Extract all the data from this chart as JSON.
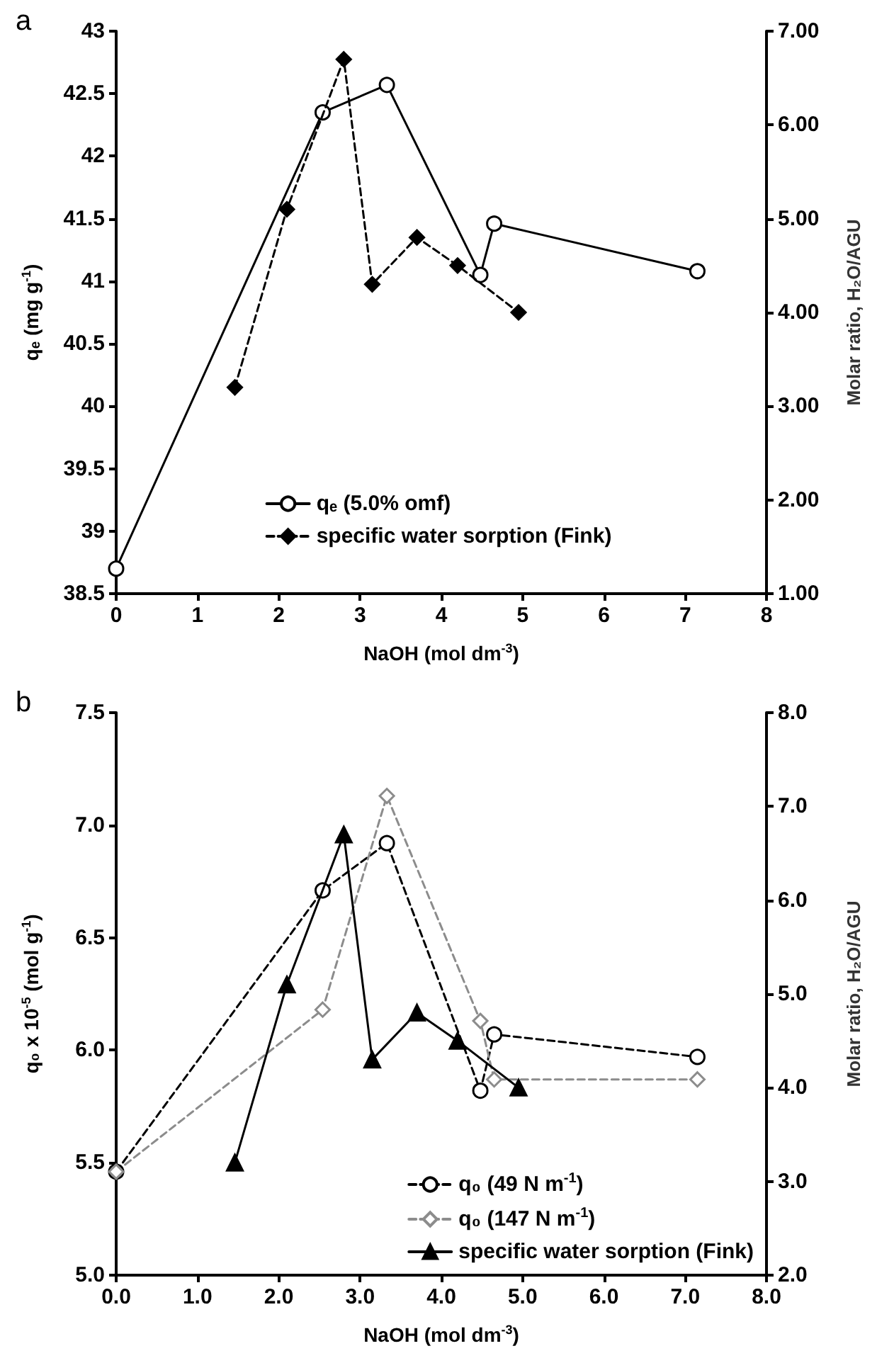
{
  "chart_data": [
    {
      "type": "line",
      "title": "a",
      "xlabel": "NaOH (mol dm$^{-3}$)",
      "ylabel": "qₑ (mg g$^{-1}$)",
      "y2label": "Molar ratio, H₂O/AGU",
      "xlim": [
        0,
        8
      ],
      "xticks": [
        0,
        1,
        2,
        3,
        4,
        5,
        6,
        7,
        8
      ],
      "ylim": [
        38.5,
        43
      ],
      "yticks": [
        38.5,
        39,
        39.5,
        40,
        40.5,
        41,
        41.5,
        42,
        42.5,
        43
      ],
      "y2lim": [
        1,
        7
      ],
      "y2ticks": [
        {
          "value": 1,
          "label": "1.00"
        },
        {
          "value": 2,
          "label": "2.00"
        },
        {
          "value": 3,
          "label": "3.00"
        },
        {
          "value": 4,
          "label": "4.00"
        },
        {
          "value": 5,
          "label": "5.00"
        },
        {
          "value": 6,
          "label": "6.00"
        },
        {
          "value": 7,
          "label": "7.00"
        }
      ],
      "grid": false,
      "legend": "bottom",
      "series": [
        {
          "name": "qₑ (5.0% omf)",
          "color": "#000000",
          "marker": "circle",
          "line_style": "solid",
          "x": [
            0,
            2.54,
            3.33,
            4.48,
            4.65,
            7.15
          ],
          "values": [
            38.7,
            42.35,
            42.57,
            41.05,
            41.46,
            41.08
          ]
        },
        {
          "name": "specific water sorption (Fink)",
          "color": "#000000",
          "marker": "diamond",
          "line_style": "dashed",
          "axis": "y2",
          "x": [
            1.46,
            2.1,
            2.8,
            3.15,
            3.7,
            4.2,
            4.95
          ],
          "values": [
            3.2,
            5.1,
            6.7,
            4.3,
            4.8,
            4.5,
            4.0
          ]
        }
      ]
    },
    {
      "type": "line",
      "title": "b",
      "xlabel": "NaOH (mol dm$^{-3}$)",
      "ylabel": "q₀ x 10$^{-5}$ (mol g$^{-1}$)",
      "y2label": "Molar ratio, H₂O/AGU",
      "xlim": [
        0,
        8
      ],
      "xticks": [
        {
          "value": 0,
          "label": "0.0"
        },
        {
          "value": 1,
          "label": "1.0"
        },
        {
          "value": 2,
          "label": "2.0"
        },
        {
          "value": 3,
          "label": "3.0"
        },
        {
          "value": 4,
          "label": "4.0"
        },
        {
          "value": 5,
          "label": "5.0"
        },
        {
          "value": 6,
          "label": "6.0"
        },
        {
          "value": 7,
          "label": "7.0"
        },
        {
          "value": 8,
          "label": "8.0"
        }
      ],
      "ylim": [
        5,
        7.5
      ],
      "yticks": [
        {
          "value": 5,
          "label": "5.0"
        },
        {
          "value": 5.5,
          "label": "5.5"
        },
        {
          "value": 6,
          "label": "6.0"
        },
        {
          "value": 6.5,
          "label": "6.5"
        },
        {
          "value": 7,
          "label": "7.0"
        },
        {
          "value": 7.5,
          "label": "7.5"
        }
      ],
      "y2lim": [
        2,
        8
      ],
      "y2ticks": [
        {
          "value": 2,
          "label": "2.0"
        },
        {
          "value": 3,
          "label": "3.0"
        },
        {
          "value": 4,
          "label": "4.0"
        },
        {
          "value": 5,
          "label": "5.0"
        },
        {
          "value": 6,
          "label": "6.0"
        },
        {
          "value": 7,
          "label": "7.0"
        },
        {
          "value": 8,
          "label": "8.0"
        }
      ],
      "grid": false,
      "legend": "bottom right",
      "series": [
        {
          "name": "q₀ (49 N m$^{-1}$)",
          "color": "#000000",
          "marker": "circle",
          "line_style": "dashed",
          "x": [
            0,
            2.54,
            3.33,
            4.48,
            4.65,
            7.15
          ],
          "values": [
            5.46,
            6.71,
            6.92,
            5.82,
            6.07,
            5.97
          ]
        },
        {
          "name": "q₀ (147 N m$^{-1}$)",
          "color": "#8c8c8c",
          "marker": "diamond",
          "line_style": "dashed",
          "x": [
            0,
            2.54,
            3.33,
            4.48,
            4.65,
            7.15
          ],
          "values": [
            5.46,
            6.18,
            7.13,
            6.13,
            5.87,
            5.87
          ]
        },
        {
          "name": "specific water sorption (Fink)",
          "color": "#000000",
          "marker": "triangle",
          "line_style": "solid",
          "axis": "y2",
          "x": [
            1.46,
            2.1,
            2.8,
            3.15,
            3.7,
            4.2,
            4.95
          ],
          "values": [
            3.2,
            5.1,
            6.7,
            4.3,
            4.8,
            4.5,
            4.0
          ]
        }
      ]
    }
  ]
}
